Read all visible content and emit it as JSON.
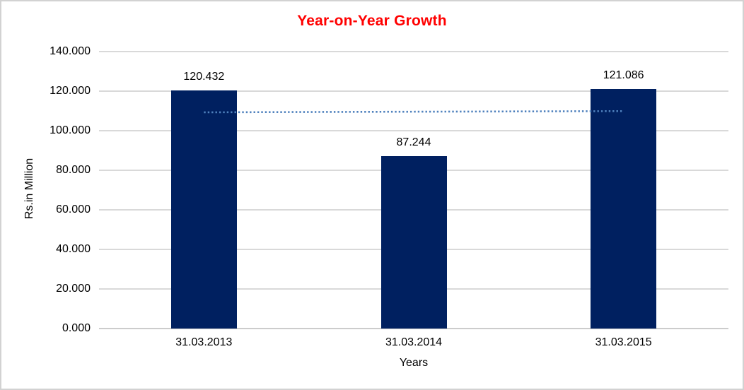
{
  "chart_data": {
    "type": "bar",
    "title": "Year-on-Year Growth",
    "xlabel": "Years",
    "ylabel": "Rs.in Million",
    "categories": [
      "31.03.2013",
      "31.03.2014",
      "31.03.2015"
    ],
    "values": [
      120.432,
      87.244,
      121.086
    ],
    "value_labels": [
      "120.432",
      "87.244",
      "121.086"
    ],
    "ylim": [
      0,
      140
    ],
    "ytick_step": 20,
    "ytick_labels": [
      "0.000",
      "20.000",
      "40.000",
      "60.000",
      "80.000",
      "100.000",
      "120.000",
      "140.000"
    ],
    "grid": true,
    "legend": "none",
    "trendline": {
      "type": "linear",
      "style": "dotted",
      "start_value": 109.3,
      "end_value": 109.9
    },
    "colors": {
      "bar": "#002060",
      "title": "#ff0000",
      "grid": "#d9d9d9",
      "axis": "#cccccc",
      "trend": "#4f81bd",
      "text": "#000000",
      "border": "#d2d2d2"
    }
  }
}
